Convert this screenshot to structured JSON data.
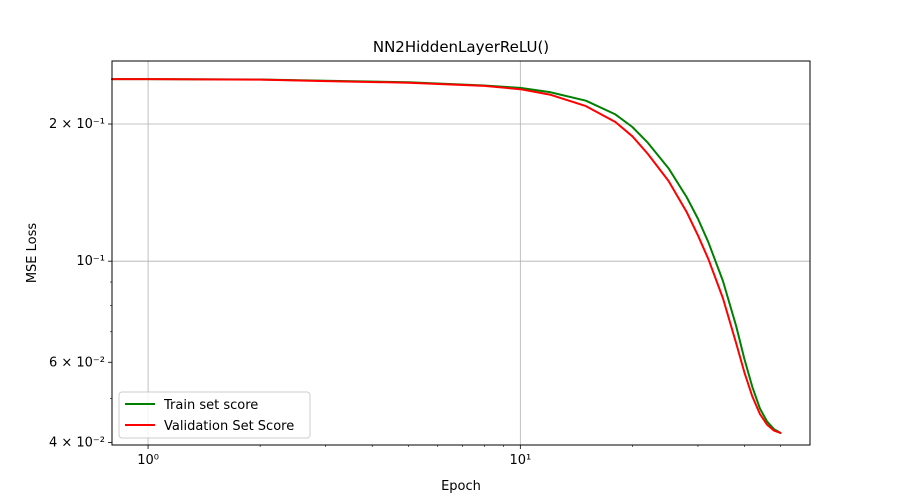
{
  "chart_data": {
    "type": "line",
    "title": "NN2HiddenLayerReLU()",
    "xlabel": "Epoch",
    "ylabel": "MSE Loss",
    "xscale": "log",
    "yscale": "log",
    "xlim": [
      0.8,
      60
    ],
    "ylim": [
      0.0395,
      0.275
    ],
    "grid": true,
    "legend_position": "lower-left",
    "x_ticks": [
      {
        "value": 1,
        "label": "10⁰"
      },
      {
        "value": 10,
        "label": "10¹"
      }
    ],
    "y_ticks": [
      {
        "value": 0.04,
        "label": "4 × 10⁻²"
      },
      {
        "value": 0.06,
        "label": "6 × 10⁻²"
      },
      {
        "value": 0.1,
        "label": "10⁻¹"
      },
      {
        "value": 0.2,
        "label": "2 × 10⁻¹"
      }
    ],
    "x": [
      0.8,
      1,
      2,
      3,
      5,
      8,
      10,
      12,
      15,
      18,
      20,
      22,
      25,
      28,
      30,
      32,
      35,
      38,
      40,
      42,
      44,
      46,
      48,
      50
    ],
    "series": [
      {
        "name": "Train set score",
        "color": "#008000",
        "values": [
          0.251,
          0.251,
          0.2505,
          0.249,
          0.247,
          0.243,
          0.24,
          0.235,
          0.225,
          0.21,
          0.197,
          0.182,
          0.16,
          0.138,
          0.124,
          0.11,
          0.0905,
          0.072,
          0.061,
          0.053,
          0.0475,
          0.0445,
          0.0428,
          0.042
        ]
      },
      {
        "name": "Validation Set Score",
        "color": "#ff0000",
        "values": [
          0.251,
          0.251,
          0.2503,
          0.2485,
          0.2465,
          0.2425,
          0.2385,
          0.232,
          0.219,
          0.202,
          0.188,
          0.172,
          0.15,
          0.128,
          0.114,
          0.101,
          0.083,
          0.066,
          0.057,
          0.0505,
          0.0462,
          0.0438,
          0.0425,
          0.042
        ]
      }
    ]
  }
}
